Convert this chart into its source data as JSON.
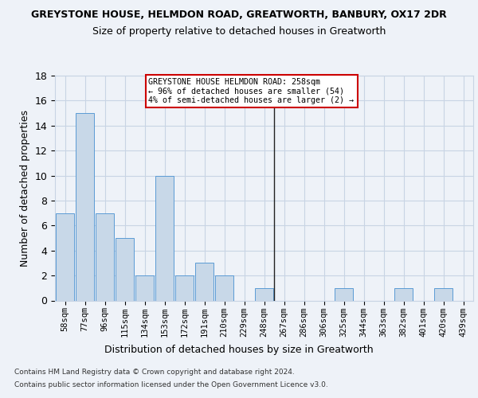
{
  "title": "GREYSTONE HOUSE, HELMDON ROAD, GREATWORTH, BANBURY, OX17 2DR",
  "subtitle": "Size of property relative to detached houses in Greatworth",
  "xlabel": "Distribution of detached houses by size in Greatworth",
  "ylabel": "Number of detached properties",
  "categories": [
    "58sqm",
    "77sqm",
    "96sqm",
    "115sqm",
    "134sqm",
    "153sqm",
    "172sqm",
    "191sqm",
    "210sqm",
    "229sqm",
    "248sqm",
    "267sqm",
    "286sqm",
    "306sqm",
    "325sqm",
    "344sqm",
    "363sqm",
    "382sqm",
    "401sqm",
    "420sqm",
    "439sqm"
  ],
  "values": [
    7,
    15,
    7,
    5,
    2,
    10,
    2,
    3,
    2,
    0,
    1,
    0,
    0,
    0,
    1,
    0,
    0,
    1,
    0,
    1,
    0
  ],
  "bar_color": "#c8d8e8",
  "bar_edge_color": "#5b9bd5",
  "grid_color": "#c8d4e4",
  "background_color": "#eef2f8",
  "property_line_index": 10,
  "annotation_text": "GREYSTONE HOUSE HELMDON ROAD: 258sqm\n← 96% of detached houses are smaller (54)\n4% of semi-detached houses are larger (2) →",
  "annotation_box_color": "#ffffff",
  "annotation_box_edge": "#cc0000",
  "ylim": [
    0,
    18
  ],
  "yticks": [
    0,
    2,
    4,
    6,
    8,
    10,
    12,
    14,
    16,
    18
  ],
  "footnote1": "Contains HM Land Registry data © Crown copyright and database right 2024.",
  "footnote2": "Contains public sector information licensed under the Open Government Licence v3.0."
}
